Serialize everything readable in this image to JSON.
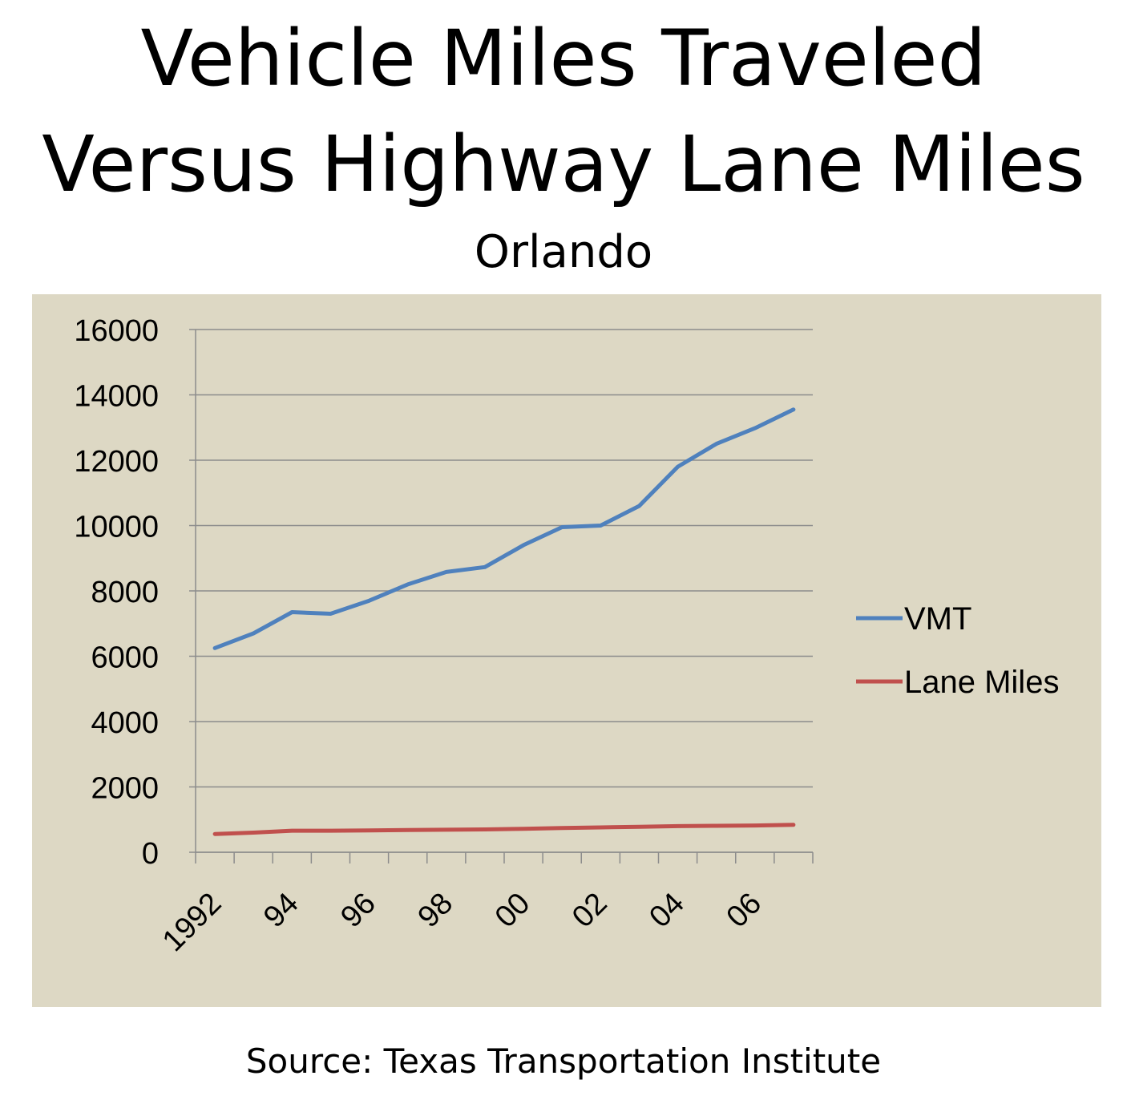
{
  "header": {
    "title_line1": "Vehicle Miles Traveled",
    "title_line2": "Versus Highway Lane Miles",
    "subtitle": "Orlando"
  },
  "footer": {
    "source": "Source: Texas Transportation Institute"
  },
  "chart_data": {
    "type": "line",
    "title": "Vehicle Miles Traveled Versus Highway Lane Miles",
    "subtitle": "Orlando",
    "x": [
      1992,
      1993,
      1994,
      1995,
      1996,
      1997,
      1998,
      1999,
      2000,
      2001,
      2002,
      2003,
      2004,
      2005,
      2006,
      2007
    ],
    "x_tick_labels": [
      "1992",
      "94",
      "96",
      "98",
      "00",
      "02",
      "04",
      "06"
    ],
    "y_ticks": [
      0,
      2000,
      4000,
      6000,
      8000,
      10000,
      12000,
      14000,
      16000
    ],
    "ylim": [
      0,
      16000
    ],
    "grid": true,
    "legend_position": "right",
    "series": [
      {
        "name": "VMT",
        "color": "#4f81bd",
        "values": [
          6250,
          6700,
          7350,
          7300,
          7700,
          8200,
          8580,
          8730,
          9400,
          9950,
          10000,
          10600,
          11800,
          12500,
          12980,
          13550
        ]
      },
      {
        "name": "Lane Miles",
        "color": "#c0504d",
        "values": [
          560,
          600,
          660,
          660,
          670,
          680,
          690,
          700,
          720,
          740,
          760,
          780,
          800,
          810,
          820,
          840
        ]
      }
    ]
  }
}
